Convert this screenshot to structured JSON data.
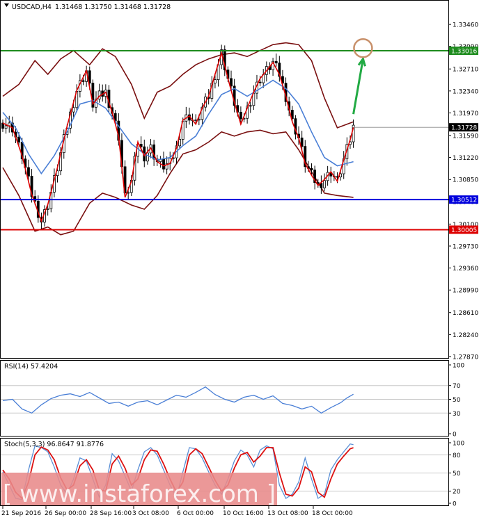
{
  "header": {
    "symbol": "USDCAD,H4",
    "ohlc": "1.31468 1.31750 1.31468 1.31728"
  },
  "chart_data": [
    {
      "type": "candlestick",
      "title": "USDCAD,H4  1.31468 1.31750 1.31468 1.31728",
      "ylim": [
        1.2787,
        1.3366
      ],
      "y_ticks": [
        "1.33460",
        "1.33090",
        "1.32710",
        "1.32340",
        "1.31970",
        "1.31590",
        "1.31220",
        "1.30850",
        "1.30480",
        "1.30100",
        "1.29730",
        "1.29360",
        "1.28990",
        "1.28610",
        "1.28240",
        "1.27870"
      ],
      "x_ticks": [
        "21 Sep 2016",
        "26 Sep 00:00",
        "28 Sep 16:00",
        "3 Oct 08:00",
        "6 Oct 00:00",
        "10 Oct 16:00",
        "13 Oct 08:00",
        "18 Oct 00:00"
      ],
      "horizontal_levels": [
        {
          "value": 1.33016,
          "label": "1.33016",
          "color": "#1e8c1e"
        },
        {
          "value": 1.30512,
          "label": "1.30512",
          "color": "#0000dd"
        },
        {
          "value": 1.30005,
          "label": "1.30005",
          "color": "#dd0000"
        }
      ],
      "current_price": {
        "value": 1.31728,
        "label": "1.31728"
      },
      "close_path": [
        [
          0,
          1.318
        ],
        [
          3,
          1.3172
        ],
        [
          6,
          1.3125
        ],
        [
          9,
          1.306
        ],
        [
          12,
          1.3015
        ],
        [
          14,
          1.3043
        ],
        [
          17,
          1.3105
        ],
        [
          20,
          1.3175
        ],
        [
          23,
          1.3235
        ],
        [
          26,
          1.3268
        ],
        [
          28,
          1.3212
        ],
        [
          30,
          1.3225
        ],
        [
          32,
          1.3232
        ],
        [
          34,
          1.3198
        ],
        [
          36,
          1.3158
        ],
        [
          38,
          1.3055
        ],
        [
          40,
          1.3082
        ],
        [
          42,
          1.3148
        ],
        [
          44,
          1.3125
        ],
        [
          46,
          1.3138
        ],
        [
          48,
          1.3115
        ],
        [
          50,
          1.3108
        ],
        [
          52,
          1.3112
        ],
        [
          54,
          1.3138
        ],
        [
          56,
          1.3185
        ],
        [
          58,
          1.3192
        ],
        [
          60,
          1.3178
        ],
        [
          62,
          1.3205
        ],
        [
          64,
          1.3225
        ],
        [
          66,
          1.3262
        ],
        [
          68,
          1.3298
        ],
        [
          70,
          1.3255
        ],
        [
          72,
          1.3215
        ],
        [
          74,
          1.3178
        ],
        [
          76,
          1.3205
        ],
        [
          78,
          1.3232
        ],
        [
          80,
          1.3255
        ],
        [
          82,
          1.3268
        ],
        [
          84,
          1.3282
        ],
        [
          86,
          1.3262
        ],
        [
          88,
          1.3225
        ],
        [
          90,
          1.3182
        ],
        [
          92,
          1.3155
        ],
        [
          94,
          1.3112
        ],
        [
          96,
          1.3092
        ],
        [
          98,
          1.3075
        ],
        [
          100,
          1.3085
        ],
        [
          102,
          1.3098
        ],
        [
          104,
          1.3082
        ],
        [
          106,
          1.3118
        ],
        [
          108,
          1.3152
        ],
        [
          109,
          1.31728
        ]
      ],
      "bollinger_upper": [
        [
          0,
          1.3225
        ],
        [
          5,
          1.3245
        ],
        [
          10,
          1.3285
        ],
        [
          14,
          1.3262
        ],
        [
          18,
          1.3288
        ],
        [
          22,
          1.3302
        ],
        [
          27,
          1.3278
        ],
        [
          31,
          1.3305
        ],
        [
          35,
          1.3292
        ],
        [
          40,
          1.3245
        ],
        [
          44,
          1.3188
        ],
        [
          48,
          1.3232
        ],
        [
          52,
          1.3242
        ],
        [
          56,
          1.3262
        ],
        [
          60,
          1.3278
        ],
        [
          64,
          1.3288
        ],
        [
          68,
          1.3295
        ],
        [
          72,
          1.3298
        ],
        [
          76,
          1.3292
        ],
        [
          80,
          1.3302
        ],
        [
          84,
          1.3312
        ],
        [
          88,
          1.3315
        ],
        [
          92,
          1.3312
        ],
        [
          96,
          1.3285
        ],
        [
          100,
          1.3222
        ],
        [
          104,
          1.3172
        ],
        [
          109,
          1.3182
        ]
      ],
      "bollinger_middle": [
        [
          0,
          1.3198
        ],
        [
          4,
          1.3172
        ],
        [
          8,
          1.3128
        ],
        [
          12,
          1.3095
        ],
        [
          16,
          1.3125
        ],
        [
          20,
          1.3165
        ],
        [
          24,
          1.3212
        ],
        [
          28,
          1.3218
        ],
        [
          32,
          1.3205
        ],
        [
          36,
          1.3175
        ],
        [
          40,
          1.3145
        ],
        [
          44,
          1.3128
        ],
        [
          48,
          1.3118
        ],
        [
          52,
          1.3122
        ],
        [
          56,
          1.3142
        ],
        [
          60,
          1.3158
        ],
        [
          64,
          1.3195
        ],
        [
          68,
          1.3228
        ],
        [
          72,
          1.3238
        ],
        [
          76,
          1.3225
        ],
        [
          80,
          1.3238
        ],
        [
          84,
          1.3252
        ],
        [
          88,
          1.3238
        ],
        [
          92,
          1.3212
        ],
        [
          96,
          1.3165
        ],
        [
          100,
          1.3122
        ],
        [
          104,
          1.3108
        ],
        [
          109,
          1.3115
        ]
      ],
      "bollinger_lower": [
        [
          0,
          1.3105
        ],
        [
          5,
          1.3058
        ],
        [
          10,
          1.2998
        ],
        [
          14,
          1.3005
        ],
        [
          18,
          1.2992
        ],
        [
          22,
          1.2998
        ],
        [
          27,
          1.3045
        ],
        [
          31,
          1.3062
        ],
        [
          35,
          1.3055
        ],
        [
          40,
          1.3042
        ],
        [
          44,
          1.3035
        ],
        [
          48,
          1.3058
        ],
        [
          52,
          1.3095
        ],
        [
          56,
          1.3128
        ],
        [
          60,
          1.3135
        ],
        [
          64,
          1.3148
        ],
        [
          68,
          1.3165
        ],
        [
          72,
          1.3158
        ],
        [
          76,
          1.3165
        ],
        [
          80,
          1.3168
        ],
        [
          84,
          1.3162
        ],
        [
          88,
          1.3165
        ],
        [
          92,
          1.3135
        ],
        [
          96,
          1.3098
        ],
        [
          100,
          1.3062
        ],
        [
          104,
          1.3058
        ],
        [
          109,
          1.3055
        ]
      ],
      "annotations": [
        {
          "kind": "arrow",
          "color": "#22aa44",
          "from": [
            109,
            1.3195
          ],
          "to": [
            112,
            1.3288
          ]
        },
        {
          "kind": "circle",
          "color": "#c8906a",
          "at": [
            112,
            1.3306
          ]
        }
      ]
    },
    {
      "type": "line",
      "title": "RSI(14) 57.4204",
      "ylim": [
        0,
        100
      ],
      "y_ticks": [
        "100",
        "70",
        "50",
        "30",
        "0"
      ],
      "levels": [
        70,
        30
      ],
      "values": [
        [
          0,
          48
        ],
        [
          3,
          50
        ],
        [
          6,
          36
        ],
        [
          9,
          30
        ],
        [
          12,
          42
        ],
        [
          15,
          51
        ],
        [
          18,
          56
        ],
        [
          21,
          58
        ],
        [
          24,
          54
        ],
        [
          27,
          60
        ],
        [
          30,
          52
        ],
        [
          33,
          44
        ],
        [
          36,
          46
        ],
        [
          39,
          40
        ],
        [
          42,
          46
        ],
        [
          45,
          48
        ],
        [
          48,
          42
        ],
        [
          51,
          49
        ],
        [
          54,
          56
        ],
        [
          57,
          53
        ],
        [
          60,
          60
        ],
        [
          63,
          68
        ],
        [
          66,
          57
        ],
        [
          69,
          50
        ],
        [
          72,
          46
        ],
        [
          75,
          53
        ],
        [
          78,
          56
        ],
        [
          81,
          50
        ],
        [
          84,
          55
        ],
        [
          87,
          44
        ],
        [
          90,
          41
        ],
        [
          93,
          36
        ],
        [
          96,
          40
        ],
        [
          99,
          30
        ],
        [
          102,
          38
        ],
        [
          105,
          45
        ],
        [
          107,
          52
        ],
        [
          109,
          57.42
        ]
      ]
    },
    {
      "type": "line",
      "title": "Stoch(5,3,3) 96.8647 91.8776",
      "ylim": [
        0,
        100
      ],
      "y_ticks": [
        "100",
        "80",
        "50",
        "20",
        "0"
      ],
      "levels": [
        80,
        20
      ],
      "series": [
        {
          "name": "96.8647",
          "color": "#5a8fd6",
          "values": [
            [
              0,
              52
            ],
            [
              2,
              30
            ],
            [
              4,
              8
            ],
            [
              6,
              6
            ],
            [
              8,
              55
            ],
            [
              10,
              95
            ],
            [
              12,
              92
            ],
            [
              14,
              85
            ],
            [
              16,
              60
            ],
            [
              18,
              30
            ],
            [
              20,
              15
            ],
            [
              22,
              40
            ],
            [
              24,
              75
            ],
            [
              26,
              70
            ],
            [
              28,
              40
            ],
            [
              30,
              10
            ],
            [
              32,
              30
            ],
            [
              34,
              82
            ],
            [
              36,
              70
            ],
            [
              38,
              45
            ],
            [
              40,
              20
            ],
            [
              42,
              55
            ],
            [
              44,
              85
            ],
            [
              46,
              92
            ],
            [
              48,
              80
            ],
            [
              50,
              55
            ],
            [
              52,
              30
            ],
            [
              54,
              10
            ],
            [
              56,
              52
            ],
            [
              58,
              92
            ],
            [
              60,
              90
            ],
            [
              62,
              75
            ],
            [
              64,
              52
            ],
            [
              66,
              30
            ],
            [
              68,
              15
            ],
            [
              70,
              40
            ],
            [
              72,
              70
            ],
            [
              74,
              88
            ],
            [
              76,
              80
            ],
            [
              78,
              60
            ],
            [
              80,
              88
            ],
            [
              82,
              95
            ],
            [
              84,
              90
            ],
            [
              86,
              30
            ],
            [
              88,
              8
            ],
            [
              90,
              15
            ],
            [
              92,
              35
            ],
            [
              94,
              75
            ],
            [
              96,
              40
            ],
            [
              98,
              8
            ],
            [
              100,
              15
            ],
            [
              102,
              55
            ],
            [
              104,
              72
            ],
            [
              106,
              85
            ],
            [
              108,
              98
            ],
            [
              109,
              96.86
            ]
          ]
        },
        {
          "name": "91.8776",
          "color": "#dd1111",
          "values": [
            [
              0,
              55
            ],
            [
              2,
              40
            ],
            [
              4,
              18
            ],
            [
              6,
              8
            ],
            [
              8,
              35
            ],
            [
              10,
              80
            ],
            [
              12,
              93
            ],
            [
              14,
              88
            ],
            [
              16,
              72
            ],
            [
              18,
              42
            ],
            [
              20,
              22
            ],
            [
              22,
              30
            ],
            [
              24,
              62
            ],
            [
              26,
              72
            ],
            [
              28,
              55
            ],
            [
              30,
              22
            ],
            [
              32,
              20
            ],
            [
              34,
              65
            ],
            [
              36,
              78
            ],
            [
              38,
              58
            ],
            [
              40,
              30
            ],
            [
              42,
              40
            ],
            [
              44,
              72
            ],
            [
              46,
              88
            ],
            [
              48,
              86
            ],
            [
              50,
              65
            ],
            [
              52,
              40
            ],
            [
              54,
              18
            ],
            [
              56,
              35
            ],
            [
              58,
              80
            ],
            [
              60,
              90
            ],
            [
              62,
              82
            ],
            [
              64,
              60
            ],
            [
              66,
              38
            ],
            [
              68,
              20
            ],
            [
              70,
              30
            ],
            [
              72,
              58
            ],
            [
              74,
              80
            ],
            [
              76,
              84
            ],
            [
              78,
              68
            ],
            [
              80,
              78
            ],
            [
              82,
              92
            ],
            [
              84,
              92
            ],
            [
              86,
              50
            ],
            [
              88,
              15
            ],
            [
              90,
              12
            ],
            [
              92,
              25
            ],
            [
              94,
              60
            ],
            [
              96,
              52
            ],
            [
              98,
              18
            ],
            [
              100,
              10
            ],
            [
              102,
              40
            ],
            [
              104,
              65
            ],
            [
              106,
              78
            ],
            [
              108,
              90
            ],
            [
              109,
              91.88
            ]
          ]
        }
      ]
    }
  ],
  "watermark": {
    "text": "[ www.instaforex.com ]"
  },
  "colors": {
    "candle": "#000000",
    "close_line": "#dd0000",
    "ma_line": "#4a7fd6",
    "bollinger": "#7a1010",
    "grid": "#c8c8c8",
    "watermark_bg": "#e88a8a"
  }
}
